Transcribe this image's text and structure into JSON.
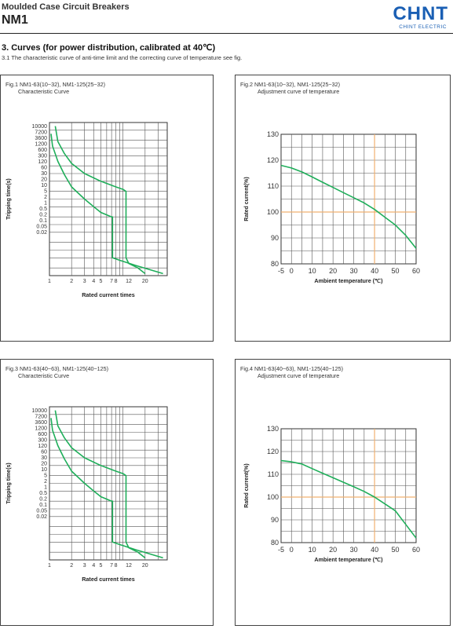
{
  "header": {
    "subtitle": "Moulded Case Circuit Breakers",
    "title": "NM1",
    "logo_text": "CHNT",
    "logo_subtext": "CHINT ELECTRIC",
    "brand_color": "#1a5fb4"
  },
  "section": {
    "title": "3. Curves (for power distribution, calibrated at 40℃)",
    "note": "3.1 The characteristic curve of anti-time limit and the correcting curve of temperature see fig."
  },
  "colors": {
    "curve": "#1fae5a",
    "grid": "#555555",
    "reference": "#f0b070"
  },
  "chart_data": [
    {
      "type": "line",
      "caption_line1": "Fig.1 NM1-63(10~32), NM1-125(25~32)",
      "caption_line2": "Characteristic Curve",
      "xlabel": "Rated current times",
      "ylabel": "Tripping time(s)",
      "x_scale": "log",
      "y_scale": "log",
      "xlim": [
        1,
        40
      ],
      "ylim": [
        0.01,
        10000
      ],
      "x_tick_labels": [
        "1",
        "2",
        "3",
        "4",
        "5",
        "7",
        "8",
        "12",
        "20"
      ],
      "x_tick_values": [
        1,
        2,
        3,
        4,
        5,
        7,
        8,
        12,
        20
      ],
      "y_tick_labels": [
        "10000",
        "7200",
        "3600",
        "1200",
        "600",
        "300",
        "120",
        "60",
        "30",
        "20",
        "10",
        "5",
        "2",
        "1",
        "0.5",
        "0.2",
        "0.1",
        "0.05",
        "0.02"
      ],
      "y_tick_values": [
        10000,
        7200,
        3600,
        1200,
        600,
        300,
        120,
        60,
        30,
        20,
        10,
        5,
        2,
        1,
        0.5,
        0.2,
        0.1,
        0.05,
        0.02
      ],
      "series": [
        {
          "x": [
            1.05,
            1.1,
            1.3,
            1.6,
            2,
            3,
            4,
            5,
            6,
            7,
            7.2,
            7.2,
            9,
            15,
            35
          ],
          "y": [
            3600,
            1200,
            300,
            90,
            30,
            10,
            5,
            3,
            2.4,
            2,
            2,
            0.05,
            0.04,
            0.025,
            0.012
          ]
        },
        {
          "x": [
            1.2,
            1.3,
            1.6,
            2,
            3,
            5,
            8,
            10,
            11,
            11,
            12,
            16,
            20
          ],
          "y": [
            7200,
            1800,
            600,
            250,
            100,
            50,
            30,
            24,
            20,
            0.05,
            0.03,
            0.02,
            0.012
          ]
        }
      ],
      "grid": true
    },
    {
      "type": "line",
      "caption_line1": "Fig.2 NM1-63(10~32), NM1-125(25~32)",
      "caption_line2": "Adjustment curve of temperature",
      "xlabel": "Ambient temperature (℃)",
      "ylabel": "Rated current(%)",
      "xlim": [
        -5,
        60
      ],
      "ylim": [
        80,
        130
      ],
      "x_tick_labels": [
        "-5",
        "0",
        "10",
        "20",
        "30",
        "40",
        "50",
        "60"
      ],
      "x_tick_values": [
        -5,
        0,
        10,
        20,
        30,
        40,
        50,
        60
      ],
      "y_tick_labels": [
        "130",
        "120",
        "110",
        "100",
        "90",
        "80"
      ],
      "y_tick_values": [
        130,
        120,
        110,
        100,
        90,
        80
      ],
      "reference": {
        "x": 40,
        "y": 100
      },
      "series": [
        {
          "x": [
            -5,
            0,
            5,
            10,
            15,
            20,
            25,
            30,
            35,
            40,
            45,
            50,
            55,
            60
          ],
          "y": [
            118,
            117,
            115.5,
            113.5,
            111.5,
            109.5,
            107.5,
            105.5,
            103.5,
            101,
            98,
            95,
            91,
            86
          ]
        }
      ],
      "grid": true
    },
    {
      "type": "line",
      "caption_line1": "Fig.3 NM1-63(40~63), NM1-125(40~125)",
      "caption_line2": "Characteristic Curve",
      "xlabel": "Rated current times",
      "ylabel": "Tripping time(s)",
      "x_scale": "log",
      "y_scale": "log",
      "xlim": [
        1,
        40
      ],
      "ylim": [
        0.01,
        10000
      ],
      "x_tick_labels": [
        "1",
        "2",
        "3",
        "4",
        "5",
        "7",
        "8",
        "12",
        "20"
      ],
      "x_tick_values": [
        1,
        2,
        3,
        4,
        5,
        7,
        8,
        12,
        20
      ],
      "y_tick_labels": [
        "10000",
        "7200",
        "3600",
        "1200",
        "600",
        "300",
        "120",
        "60",
        "30",
        "20",
        "10",
        "5",
        "2",
        "1",
        "0.5",
        "0.2",
        "0.1",
        "0.05",
        "0.02"
      ],
      "y_tick_values": [
        10000,
        7200,
        3600,
        1200,
        600,
        300,
        120,
        60,
        30,
        20,
        10,
        5,
        2,
        1,
        0.5,
        0.2,
        0.1,
        0.05,
        0.02
      ],
      "series": [
        {
          "x": [
            1.05,
            1.1,
            1.3,
            1.6,
            2,
            3,
            4,
            5,
            6,
            7,
            7.2,
            7.2,
            9,
            15,
            35
          ],
          "y": [
            3600,
            1200,
            300,
            90,
            30,
            10,
            5,
            3,
            2.4,
            2,
            2,
            0.05,
            0.04,
            0.025,
            0.012
          ]
        },
        {
          "x": [
            1.2,
            1.3,
            1.6,
            2,
            3,
            5,
            8,
            10,
            11,
            11,
            12,
            16,
            20
          ],
          "y": [
            7200,
            1800,
            600,
            250,
            100,
            50,
            30,
            24,
            20,
            0.05,
            0.03,
            0.02,
            0.012
          ]
        }
      ],
      "grid": true
    },
    {
      "type": "line",
      "caption_line1": "Fig.4 NM1-63(40~63), NM1-125(40~125)",
      "caption_line2": "Adjustment curve of temperature",
      "xlabel": "Ambient temperature (℃)",
      "ylabel": "Rated current(%)",
      "xlim": [
        -5,
        60
      ],
      "ylim": [
        80,
        130
      ],
      "x_tick_labels": [
        "-5",
        "0",
        "10",
        "20",
        "30",
        "40",
        "50",
        "60"
      ],
      "x_tick_values": [
        -5,
        0,
        10,
        20,
        30,
        40,
        50,
        60
      ],
      "y_tick_labels": [
        "130",
        "120",
        "110",
        "100",
        "90",
        "80"
      ],
      "y_tick_values": [
        130,
        120,
        110,
        100,
        90,
        80
      ],
      "reference": {
        "x": 40,
        "y": 100
      },
      "series": [
        {
          "x": [
            -5,
            0,
            5,
            10,
            15,
            20,
            25,
            30,
            35,
            40,
            45,
            50,
            55,
            60
          ],
          "y": [
            116,
            115.5,
            114.5,
            112.5,
            110.5,
            108.5,
            106.5,
            104.5,
            102.5,
            100,
            97,
            94,
            88,
            82
          ]
        }
      ],
      "grid": true
    }
  ]
}
